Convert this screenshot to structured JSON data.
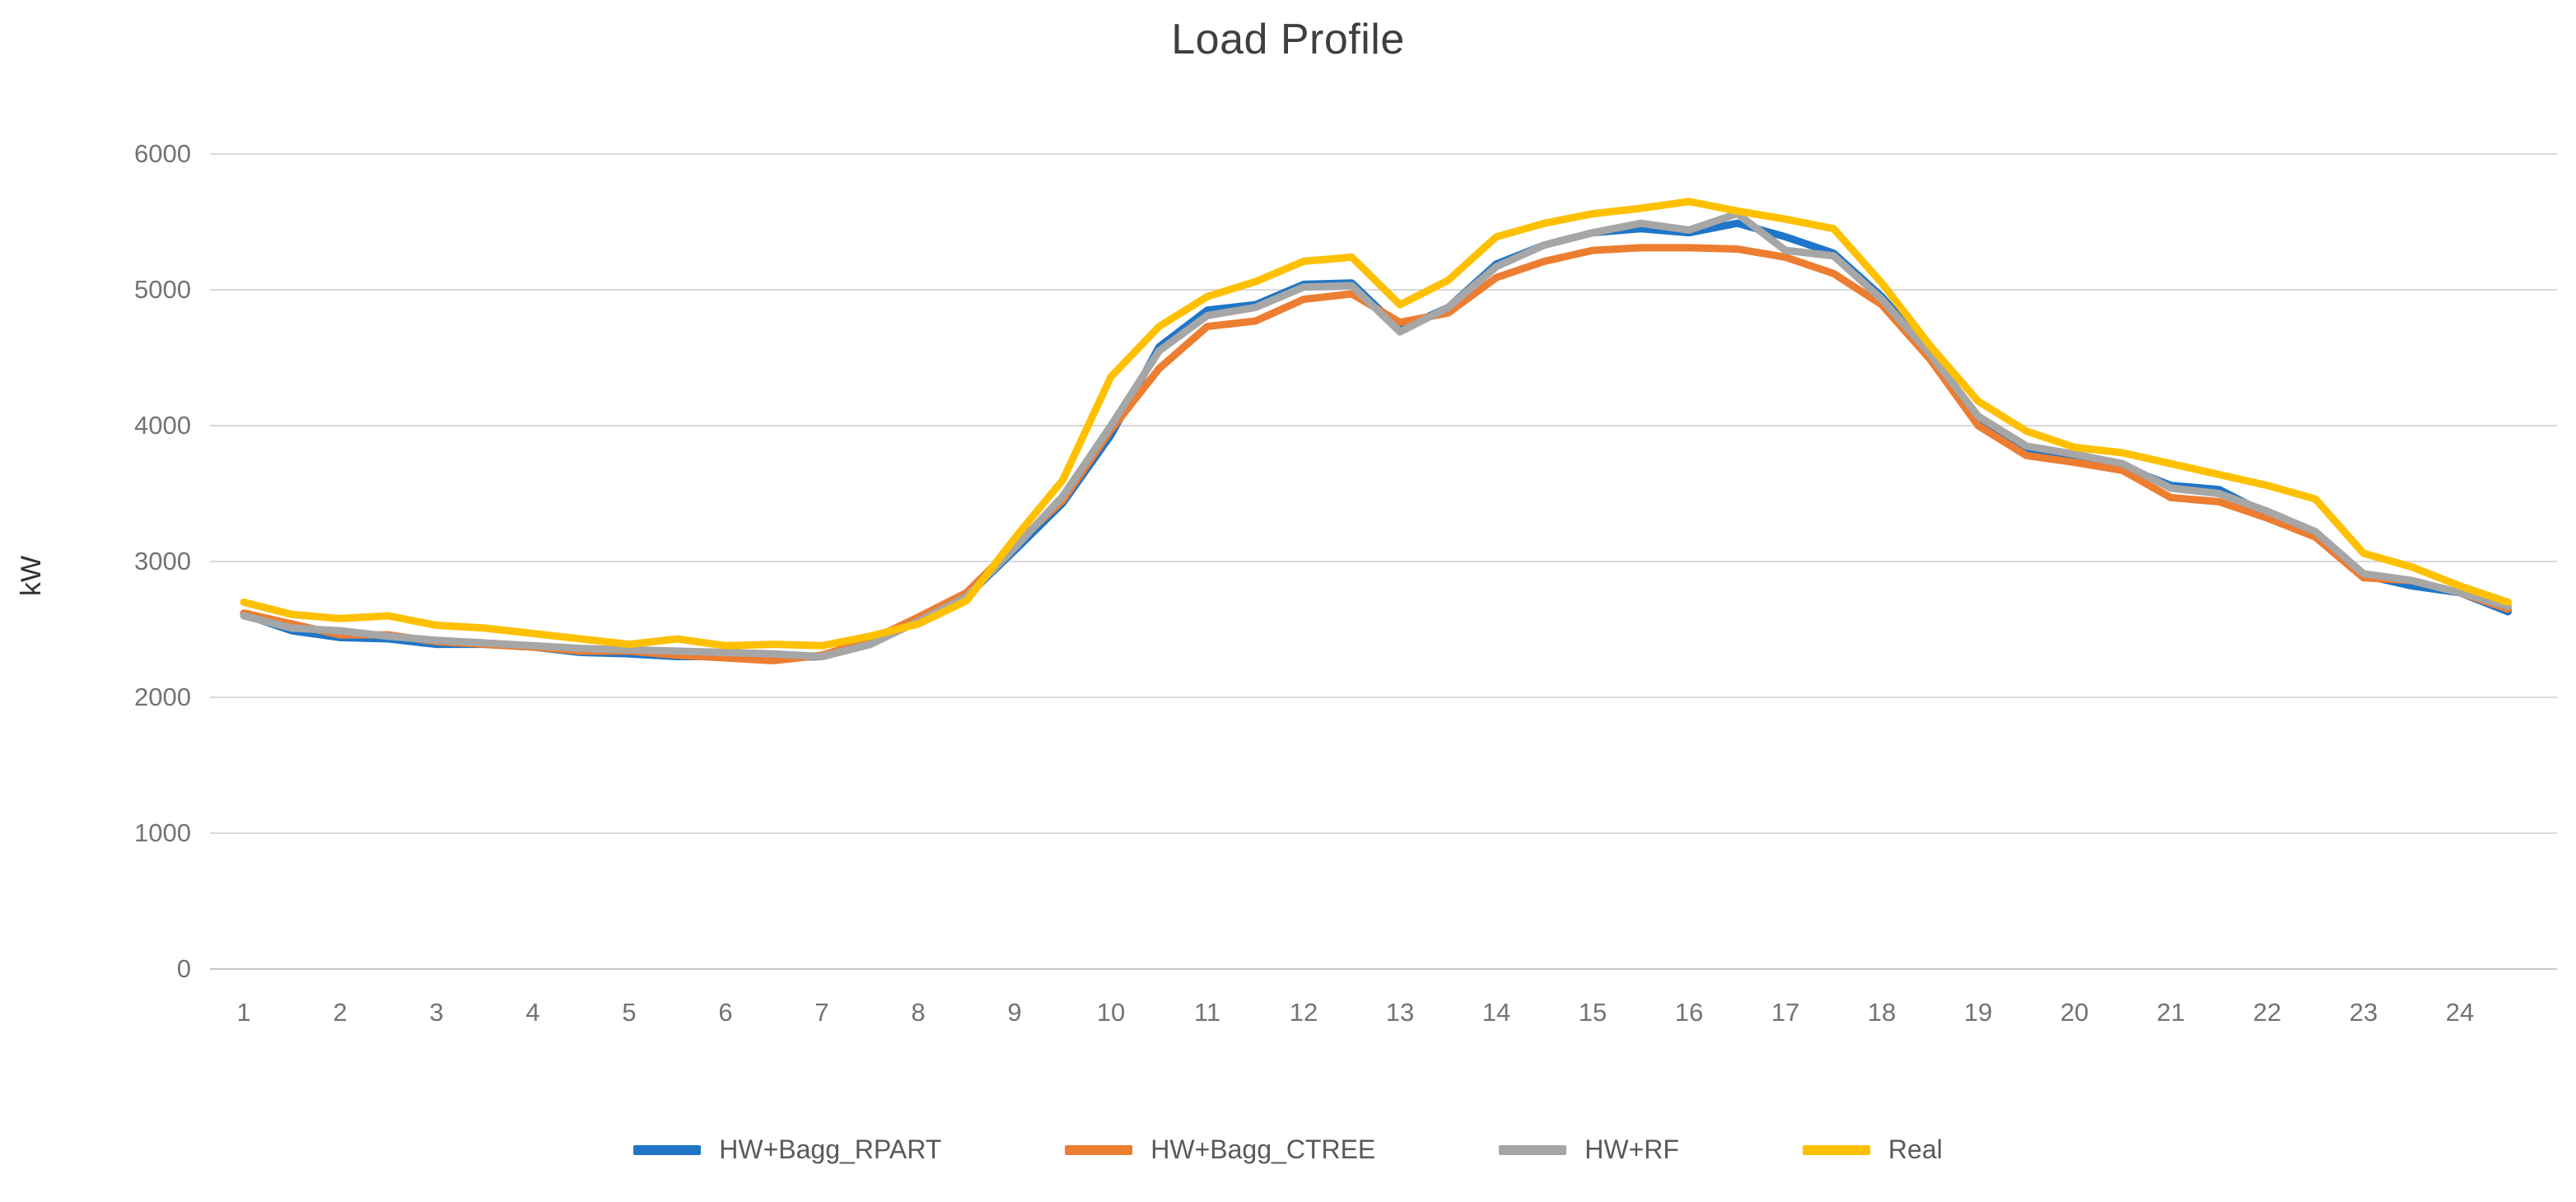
{
  "title": "Load Profile",
  "y_axis": {
    "label": "kW",
    "ticks": [
      0,
      1000,
      2000,
      3000,
      4000,
      5000,
      6000
    ]
  },
  "x_axis": {
    "ticks": [
      1,
      2,
      3,
      4,
      5,
      6,
      7,
      8,
      9,
      10,
      11,
      12,
      13,
      14,
      15,
      16,
      17,
      18,
      19,
      20,
      21,
      22,
      23,
      24
    ]
  },
  "legend": [
    {
      "label": "HW+Bagg_RPART",
      "color": "#1F76C8"
    },
    {
      "label": "HW+Bagg_CTREE",
      "color": "#ED7D31"
    },
    {
      "label": "HW+RF",
      "color": "#A6A6A6"
    },
    {
      "label": "Real",
      "color": "#FFC000"
    }
  ],
  "colors": {
    "gridline": "#D9D9D9",
    "axis_line": "#C9C9C9",
    "tick_text": "#737373",
    "title_text": "#3F3F3F",
    "legend_text": "#595959"
  },
  "chart_data": {
    "type": "line",
    "title": "Load Profile",
    "xlabel": "",
    "ylabel": "kW",
    "ylim": [
      0,
      6000
    ],
    "xlim": [
      1,
      24.5
    ],
    "grid": "horizontal",
    "legend_position": "bottom",
    "x_step_hours": 0.5,
    "x": [
      1,
      1.5,
      2,
      2.5,
      3,
      3.5,
      4,
      4.5,
      5,
      5.5,
      6,
      6.5,
      7,
      7.5,
      8,
      8.5,
      9,
      9.5,
      10,
      10.5,
      11,
      11.5,
      12,
      12.5,
      13,
      13.5,
      14,
      14.5,
      15,
      15.5,
      16,
      16.5,
      17,
      17.5,
      18,
      18.5,
      19,
      19.5,
      20,
      20.5,
      21,
      21.5,
      22,
      22.5,
      23,
      23.5,
      24,
      24.5
    ],
    "series": [
      {
        "name": "HW+Bagg_RPART",
        "color": "#1F76C8",
        "values": [
          2610,
          2490,
          2440,
          2430,
          2390,
          2390,
          2370,
          2330,
          2320,
          2300,
          2300,
          2290,
          2300,
          2390,
          2560,
          2740,
          3080,
          3430,
          3930,
          4580,
          4850,
          4890,
          5040,
          5050,
          4710,
          4870,
          5190,
          5330,
          5420,
          5450,
          5420,
          5490,
          5390,
          5270,
          4950,
          4540,
          4060,
          3800,
          3760,
          3700,
          3560,
          3530,
          3350,
          3200,
          2900,
          2820,
          2770,
          2630
        ]
      },
      {
        "name": "HW+Bagg_CTREE",
        "color": "#ED7D31",
        "values": [
          2620,
          2540,
          2460,
          2460,
          2410,
          2390,
          2370,
          2340,
          2340,
          2310,
          2290,
          2270,
          2310,
          2420,
          2590,
          2770,
          3120,
          3450,
          3970,
          4420,
          4730,
          4770,
          4930,
          4970,
          4760,
          4830,
          5090,
          5210,
          5290,
          5310,
          5310,
          5300,
          5240,
          5120,
          4890,
          4490,
          4000,
          3780,
          3730,
          3670,
          3470,
          3440,
          3320,
          3180,
          2880,
          2860,
          2770,
          2650
        ]
      },
      {
        "name": "HW+RF",
        "color": "#A6A6A6",
        "values": [
          2600,
          2510,
          2490,
          2450,
          2420,
          2400,
          2380,
          2360,
          2350,
          2340,
          2330,
          2320,
          2300,
          2390,
          2560,
          2740,
          3100,
          3480,
          4000,
          4550,
          4810,
          4870,
          5020,
          5030,
          4690,
          4870,
          5170,
          5330,
          5420,
          5490,
          5440,
          5560,
          5290,
          5250,
          4930,
          4530,
          4070,
          3850,
          3790,
          3720,
          3540,
          3500,
          3370,
          3220,
          2910,
          2860,
          2770,
          2670
        ]
      },
      {
        "name": "Real",
        "color": "#FFC000",
        "values": [
          2700,
          2610,
          2580,
          2600,
          2530,
          2510,
          2470,
          2430,
          2390,
          2430,
          2380,
          2390,
          2380,
          2450,
          2540,
          2710,
          3170,
          3600,
          4360,
          4730,
          4950,
          5060,
          5210,
          5240,
          4890,
          5070,
          5390,
          5490,
          5560,
          5600,
          5650,
          5580,
          5520,
          5450,
          5050,
          4590,
          4180,
          3960,
          3840,
          3800,
          3720,
          3640,
          3560,
          3460,
          3060,
          2960,
          2820,
          2700
        ]
      }
    ]
  }
}
